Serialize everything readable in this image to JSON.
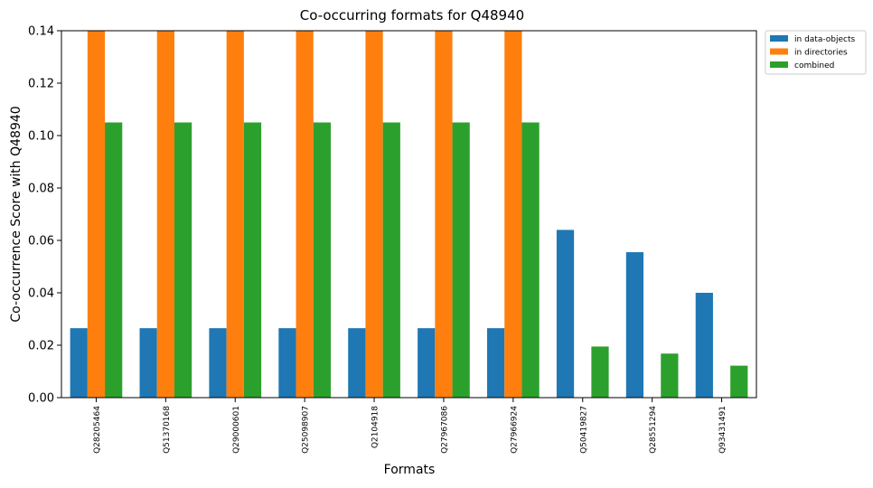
{
  "chart_data": {
    "type": "bar",
    "title": "Co-occurring formats for Q48940",
    "xlabel": "Formats",
    "ylabel": "Co-occurrence Score with Q48940",
    "ylim": [
      0,
      0.14
    ],
    "yticks": [
      "0.00",
      "0.02",
      "0.04",
      "0.06",
      "0.08",
      "0.10",
      "0.12",
      "0.14"
    ],
    "grid": false,
    "legend_position": "outside-top-right",
    "categories": [
      "Q28205464",
      "Q51370168",
      "Q29000601",
      "Q25098907",
      "Q2104918",
      "Q27967086",
      "Q27966924",
      "Q50419827",
      "Q28551294",
      "Q93431491"
    ],
    "series": [
      {
        "name": "in data-objects",
        "color": "#1f77b4",
        "values": [
          0.0265,
          0.0265,
          0.0265,
          0.0265,
          0.0265,
          0.0265,
          0.0265,
          0.064,
          0.0555,
          0.04
        ]
      },
      {
        "name": "in directories",
        "color": "#ff7f0e",
        "values": [
          0.14,
          0.14,
          0.14,
          0.14,
          0.14,
          0.14,
          0.14,
          0,
          0,
          0
        ]
      },
      {
        "name": "combined",
        "color": "#2ca02c",
        "values": [
          0.105,
          0.105,
          0.105,
          0.105,
          0.105,
          0.105,
          0.105,
          0.0195,
          0.0168,
          0.0122
        ]
      }
    ]
  }
}
